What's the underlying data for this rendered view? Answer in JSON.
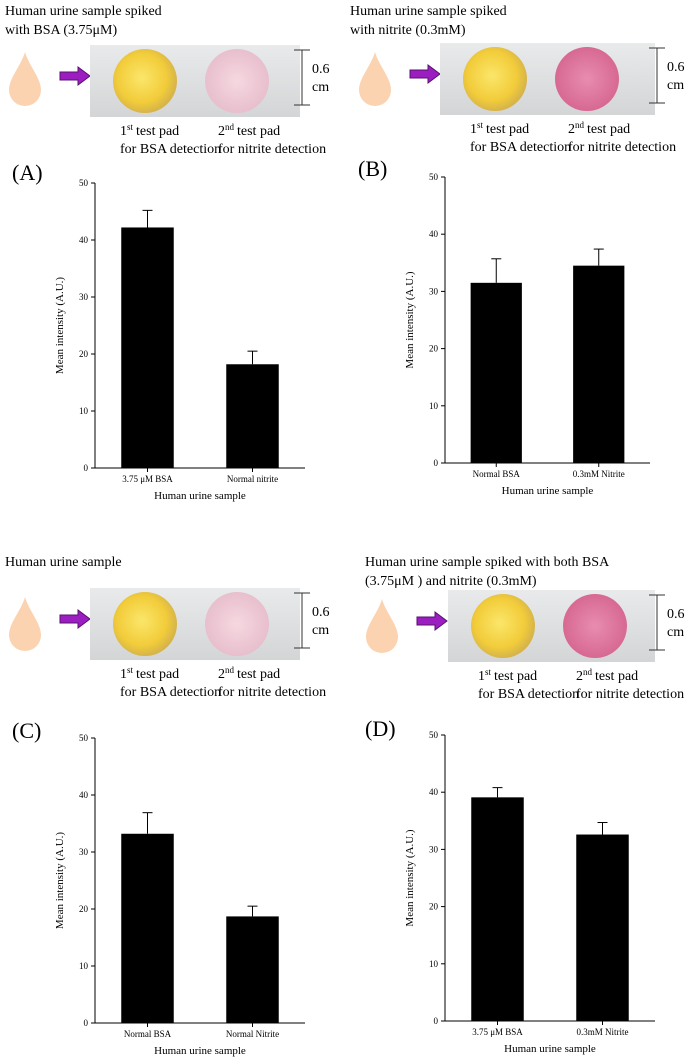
{
  "chart_data": [
    {
      "type": "bar",
      "panel": "(A)",
      "title_lines": [
        "Human urine sample spiked",
        "with BSA (3.75μM)"
      ],
      "scale_label_lines": [
        "0.6",
        "cm"
      ],
      "pads": [
        {
          "ordinal": "1",
          "suffix": "st",
          "text": "test pad",
          "detail": "for BSA detection"
        },
        {
          "ordinal": "2",
          "suffix": "nd",
          "text": "test pad",
          "detail": "for nitrite detection"
        }
      ],
      "xlabel": "Human urine sample",
      "ylabel": "Mean intensity (A.U.)",
      "categories": [
        "3.75 μM BSA",
        "Normal nitrite"
      ],
      "values": [
        42.2,
        18.2
      ],
      "errors": [
        3.0,
        2.3
      ],
      "color": "#000000",
      "ylim": [
        0,
        50
      ],
      "yticks": [
        0,
        10,
        20,
        30,
        40,
        50
      ]
    },
    {
      "type": "bar",
      "panel": "(B)",
      "title_lines": [
        "Human urine sample spiked",
        "with nitrite (0.3mM)"
      ],
      "scale_label_lines": [
        "0.6",
        "cm"
      ],
      "pads": [
        {
          "ordinal": "1",
          "suffix": "st",
          "text": "test pad",
          "detail": "for BSA detection"
        },
        {
          "ordinal": "2",
          "suffix": "nd",
          "text": "test pad",
          "detail": "for nitrite detection"
        }
      ],
      "xlabel": "Human urine sample",
      "ylabel": "Mean intensity (A.U.)",
      "categories": [
        "Normal BSA",
        "0.3mM Nitrite"
      ],
      "values": [
        31.5,
        34.5
      ],
      "errors": [
        4.2,
        2.9
      ],
      "color": "#000000",
      "ylim": [
        0,
        50
      ],
      "yticks": [
        0,
        10,
        20,
        30,
        40,
        50
      ]
    },
    {
      "type": "bar",
      "panel": "(C)",
      "title_lines": [
        "Human urine sample"
      ],
      "scale_label_lines": [
        "0.6",
        "cm"
      ],
      "pads": [
        {
          "ordinal": "1",
          "suffix": "st",
          "text": "test pad",
          "detail": "for BSA detection"
        },
        {
          "ordinal": "2",
          "suffix": "nd",
          "text": "test pad",
          "detail": "for nitrite detection"
        }
      ],
      "xlabel": "Human urine sample",
      "ylabel": "Mean intensity (A.U.)",
      "categories": [
        "Normal BSA",
        "Normal Nitrite"
      ],
      "values": [
        33.2,
        18.7
      ],
      "errors": [
        3.7,
        1.8
      ],
      "color": "#000000",
      "ylim": [
        0,
        50
      ],
      "yticks": [
        0,
        10,
        20,
        30,
        40,
        50
      ]
    },
    {
      "type": "bar",
      "panel": "(D)",
      "title_lines": [
        "Human urine sample spiked with both BSA",
        "(3.75μM ) and nitrite (0.3mM)"
      ],
      "scale_label_lines": [
        "0.6",
        "cm"
      ],
      "pads": [
        {
          "ordinal": "1",
          "suffix": "st",
          "text": "test pad",
          "detail": "for BSA detection"
        },
        {
          "ordinal": "2",
          "suffix": "nd",
          "text": "test pad",
          "detail": "for nitrite detection"
        }
      ],
      "xlabel": "Human urine sample",
      "ylabel": "Mean intensity (A.U.)",
      "categories": [
        "3.75 μM BSA",
        "0.3mM Nitrite"
      ],
      "values": [
        39.1,
        32.6
      ],
      "errors": [
        1.7,
        2.1
      ],
      "color": "#000000",
      "ylim": [
        0,
        50
      ],
      "yticks": [
        0,
        10,
        20,
        30,
        40,
        50
      ]
    }
  ]
}
